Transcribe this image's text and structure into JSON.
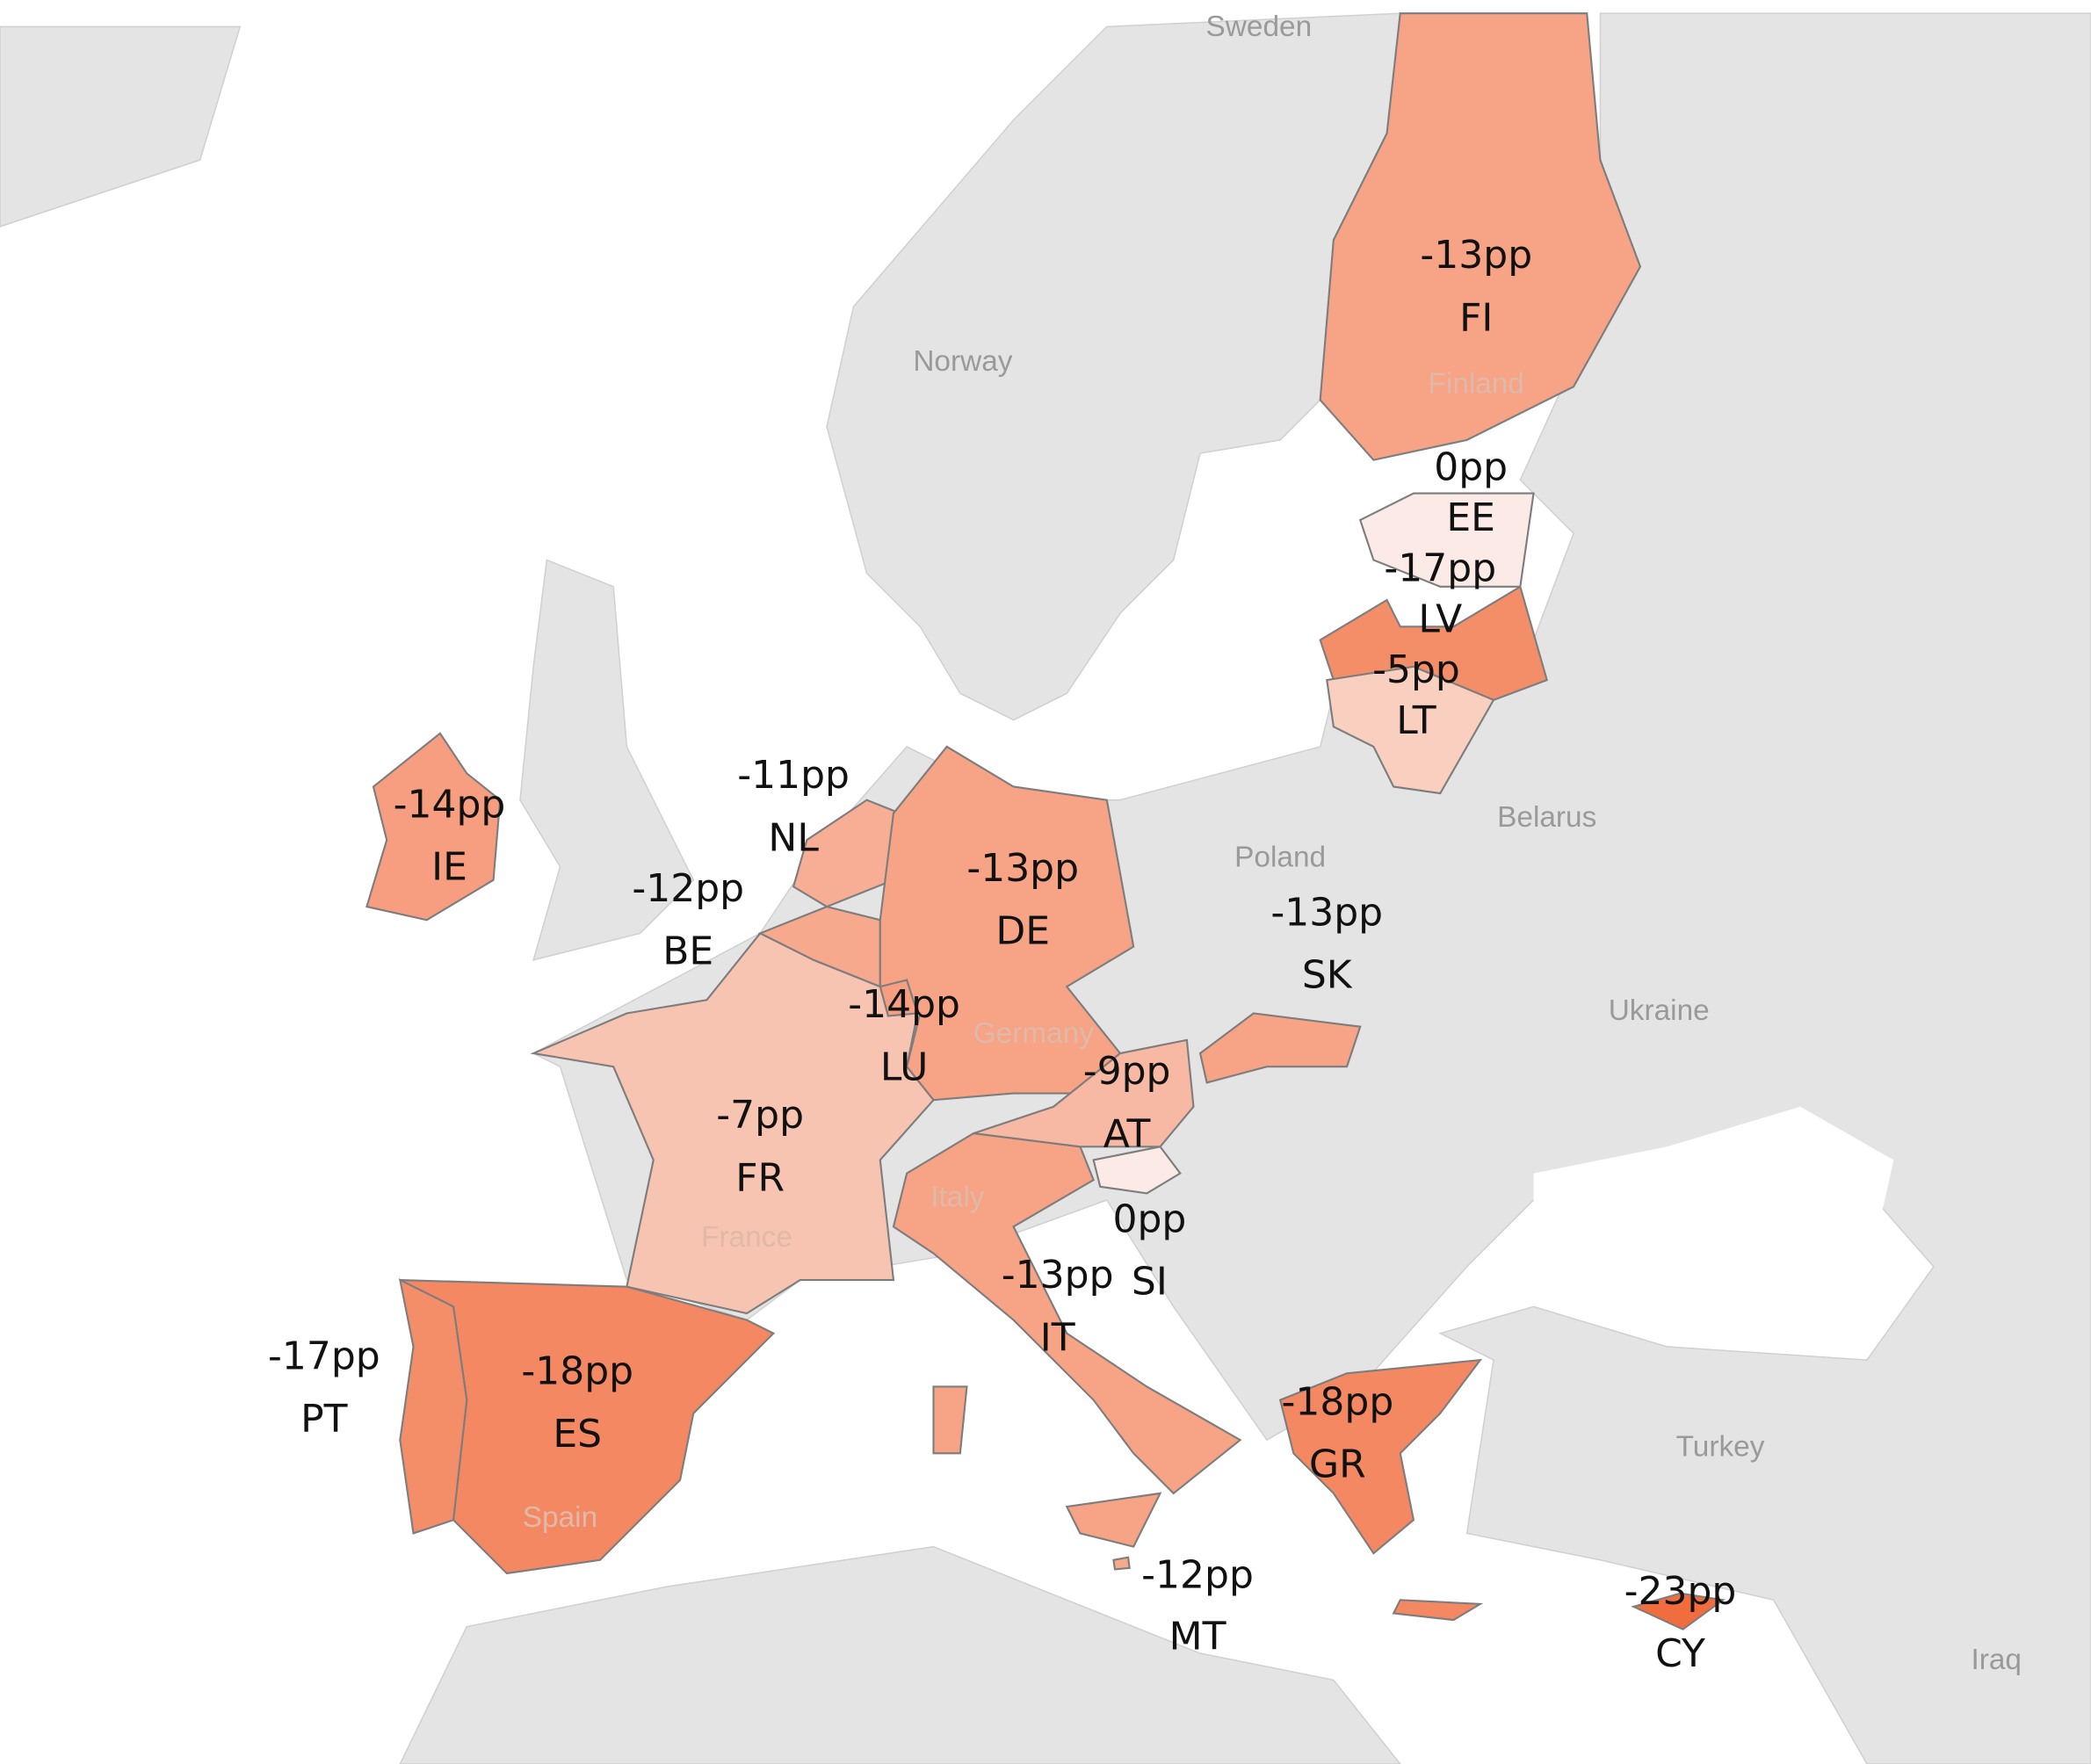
{
  "map": {
    "color_scale": {
      "min_value": -23,
      "max_value": 0,
      "min_color": "#f26d3d",
      "max_color": "#fbeae5"
    },
    "land_color": "#e4e4e4",
    "sea_color": "#ffffff",
    "base_labels": {
      "sweden": "Sweden",
      "norway": "Norway",
      "poland": "Poland",
      "belarus": "Belarus",
      "ukraine": "Ukraine",
      "turkey": "Turkey",
      "iraq": "Iraq",
      "finland": "Finland",
      "germany": "Germany",
      "france": "France",
      "italy": "Italy",
      "spain": "Spain"
    },
    "countries": {
      "FI": {
        "code": "FI",
        "value": -13,
        "label": "-13pp"
      },
      "EE": {
        "code": "EE",
        "value": 0,
        "label": "0pp"
      },
      "LV": {
        "code": "LV",
        "value": -17,
        "label": "-17pp"
      },
      "LT": {
        "code": "LT",
        "value": -5,
        "label": "-5pp"
      },
      "IE": {
        "code": "IE",
        "value": -14,
        "label": "-14pp"
      },
      "NL": {
        "code": "NL",
        "value": -11,
        "label": "-11pp"
      },
      "BE": {
        "code": "BE",
        "value": -12,
        "label": "-12pp"
      },
      "DE": {
        "code": "DE",
        "value": -13,
        "label": "-13pp"
      },
      "LU": {
        "code": "LU",
        "value": -14,
        "label": "-14pp"
      },
      "SK": {
        "code": "SK",
        "value": -13,
        "label": "-13pp"
      },
      "AT": {
        "code": "AT",
        "value": -9,
        "label": "-9pp"
      },
      "FR": {
        "code": "FR",
        "value": -7,
        "label": "-7pp"
      },
      "SI": {
        "code": "SI",
        "value": 0,
        "label": "0pp"
      },
      "IT": {
        "code": "IT",
        "value": -13,
        "label": "-13pp"
      },
      "PT": {
        "code": "PT",
        "value": -17,
        "label": "-17pp"
      },
      "ES": {
        "code": "ES",
        "value": -18,
        "label": "-18pp"
      },
      "GR": {
        "code": "GR",
        "value": -18,
        "label": "-18pp"
      },
      "MT": {
        "code": "MT",
        "value": -12,
        "label": "-12pp"
      },
      "CY": {
        "code": "CY",
        "value": -23,
        "label": "-23pp"
      }
    }
  }
}
